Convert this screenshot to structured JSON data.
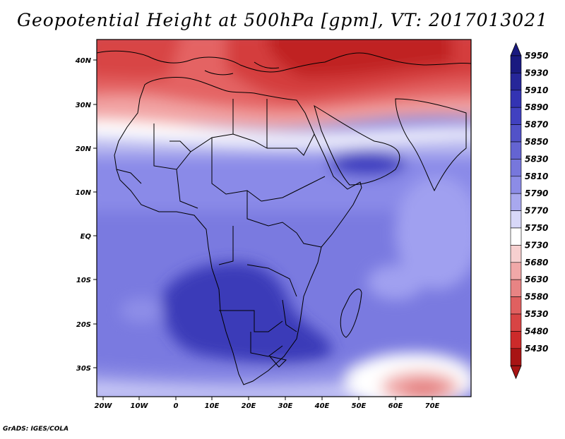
{
  "title": "Geopotential Height at 500hPa [gpm], VT: 2017013021",
  "credit": "GrADS: IGES/COLA",
  "map": {
    "region": "Africa",
    "x_ticks": [
      "20W",
      "10W",
      "0",
      "10E",
      "20E",
      "30E",
      "40E",
      "50E",
      "60E",
      "70E"
    ],
    "y_ticks": [
      "40N",
      "30N",
      "20N",
      "10N",
      "EQ",
      "10S",
      "20S",
      "30S"
    ]
  },
  "colorbar": {
    "levels": [
      "5950",
      "5930",
      "5910",
      "5890",
      "5870",
      "5850",
      "5830",
      "5810",
      "5790",
      "5770",
      "5750",
      "5730",
      "5680",
      "5630",
      "5580",
      "5530",
      "5480",
      "5430"
    ],
    "colors": [
      "#1a1a80",
      "#262699",
      "#3333b3",
      "#4141c0",
      "#5252c8",
      "#6464d2",
      "#7777dc",
      "#8c8ce6",
      "#a8a8ee",
      "#d8d8f8",
      "#ffffff",
      "#f7d0d0",
      "#f0a8a8",
      "#e88484",
      "#e06060",
      "#d84444",
      "#cc2a2a",
      "#a81414"
    ],
    "arrow_top": "#1a1a80",
    "arrow_bottom": "#a81414"
  }
}
